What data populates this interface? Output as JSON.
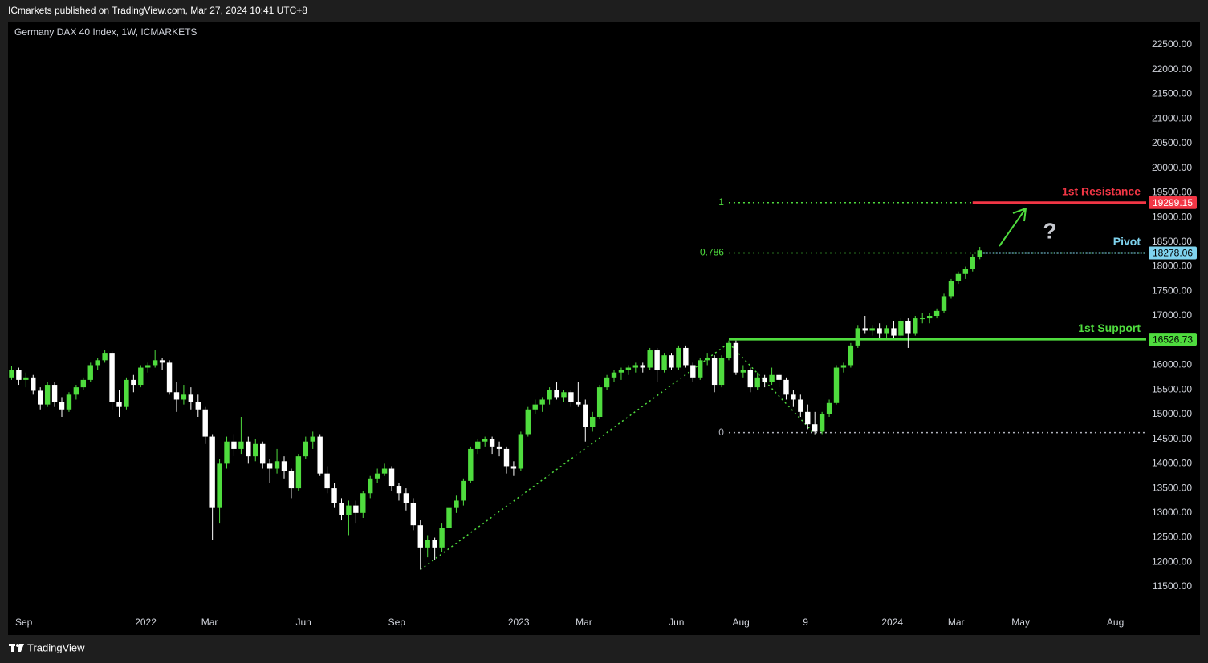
{
  "header": {
    "publisher": "ICmarkets published on TradingView.com, Mar 27, 2024 10:41 UTC+8",
    "footer": "TradingView"
  },
  "chart_data": {
    "type": "candlestick",
    "title": "Germany DAX 40 Index, 1W, ICMARKETS",
    "up_color": "#4fdc3e",
    "down_color": "#ffffff",
    "ylim": [
      10963,
      22956
    ],
    "yticks": [
      {
        "value": 11500,
        "label": "11500.00"
      },
      {
        "value": 12000,
        "label": "12000.00"
      },
      {
        "value": 12500,
        "label": "12500.00"
      },
      {
        "value": 13000,
        "label": "13000.00"
      },
      {
        "value": 13500,
        "label": "13500.00"
      },
      {
        "value": 14000,
        "label": "14000.00"
      },
      {
        "value": 14500,
        "label": "14500.00"
      },
      {
        "value": 15000,
        "label": "15000.00"
      },
      {
        "value": 15500,
        "label": "15500.00"
      },
      {
        "value": 16000,
        "label": "16000.00"
      },
      {
        "value": 16500,
        "label": "16500.00"
      },
      {
        "value": 17000,
        "label": "17000.00"
      },
      {
        "value": 17500,
        "label": "17500.00"
      },
      {
        "value": 18000,
        "label": "18000.00"
      },
      {
        "value": 18500,
        "label": "18500.00"
      },
      {
        "value": 19000,
        "label": "19000.00"
      },
      {
        "value": 19500,
        "label": "19500.00"
      },
      {
        "value": 20000,
        "label": "20000.00"
      },
      {
        "value": 20500,
        "label": "20500.00"
      },
      {
        "value": 21000,
        "label": "21000.00"
      },
      {
        "value": 21500,
        "label": "21500.00"
      },
      {
        "value": 22000,
        "label": "22000.00"
      },
      {
        "value": 22500,
        "label": "22500.00"
      }
    ],
    "xlim": [
      -0.5,
      158.2
    ],
    "xticks": [
      {
        "value": 1.7,
        "label": "Sep"
      },
      {
        "value": 18.7,
        "label": "2022"
      },
      {
        "value": 27.6,
        "label": "Mar"
      },
      {
        "value": 40.7,
        "label": "Jun"
      },
      {
        "value": 53.7,
        "label": "Sep"
      },
      {
        "value": 70.7,
        "label": "2023"
      },
      {
        "value": 79.8,
        "label": "Mar"
      },
      {
        "value": 92.7,
        "label": "Jun"
      },
      {
        "value": 101.7,
        "label": "Aug"
      },
      {
        "value": 110.7,
        "label": "9"
      },
      {
        "value": 122.8,
        "label": "2024"
      },
      {
        "value": 131.7,
        "label": "Mar"
      },
      {
        "value": 140.7,
        "label": "May"
      },
      {
        "value": 153.9,
        "label": "Aug"
      }
    ],
    "ohlc": [
      [
        15750,
        15980,
        15700,
        15900
      ],
      [
        15900,
        15950,
        15600,
        15700
      ],
      [
        15700,
        15850,
        15550,
        15750
      ],
      [
        15750,
        15800,
        15400,
        15480
      ],
      [
        15480,
        15550,
        15100,
        15200
      ],
      [
        15200,
        15650,
        15150,
        15600
      ],
      [
        15600,
        15650,
        15150,
        15250
      ],
      [
        15250,
        15350,
        14950,
        15100
      ],
      [
        15100,
        15450,
        15050,
        15400
      ],
      [
        15400,
        15600,
        15300,
        15550
      ],
      [
        15550,
        15750,
        15500,
        15700
      ],
      [
        15700,
        16050,
        15650,
        16000
      ],
      [
        16000,
        16150,
        15900,
        16100
      ],
      [
        16100,
        16300,
        16050,
        16250
      ],
      [
        16250,
        16280,
        15100,
        15250
      ],
      [
        15250,
        15500,
        14950,
        15150
      ],
      [
        15150,
        15750,
        15100,
        15700
      ],
      [
        15700,
        15800,
        15450,
        15600
      ],
      [
        15600,
        16000,
        15550,
        15950
      ],
      [
        15950,
        16050,
        15850,
        16000
      ],
      [
        16000,
        16300,
        15950,
        16100
      ],
      [
        16100,
        16150,
        15900,
        16050
      ],
      [
        16050,
        16100,
        15400,
        15450
      ],
      [
        15450,
        15650,
        15050,
        15300
      ],
      [
        15300,
        15600,
        15200,
        15400
      ],
      [
        15400,
        15550,
        15100,
        15250
      ],
      [
        15250,
        15400,
        14950,
        15100
      ],
      [
        15100,
        15150,
        14400,
        14550
      ],
      [
        14550,
        14600,
        12450,
        13100
      ],
      [
        13100,
        14100,
        12800,
        14000
      ],
      [
        14000,
        14550,
        13900,
        14450
      ],
      [
        14450,
        14600,
        14150,
        14300
      ],
      [
        14300,
        14950,
        14200,
        14450
      ],
      [
        14450,
        14550,
        14000,
        14150
      ],
      [
        14150,
        14500,
        14050,
        14400
      ],
      [
        14400,
        14450,
        13900,
        14000
      ],
      [
        14000,
        14100,
        13600,
        13900
      ],
      [
        13900,
        14300,
        13800,
        14050
      ],
      [
        14050,
        14150,
        13700,
        13850
      ],
      [
        13850,
        13900,
        13300,
        13500
      ],
      [
        13500,
        14200,
        13450,
        14150
      ],
      [
        14150,
        14550,
        14100,
        14450
      ],
      [
        14450,
        14650,
        14300,
        14550
      ],
      [
        14550,
        14600,
        13750,
        13800
      ],
      [
        13800,
        13950,
        13400,
        13500
      ],
      [
        13500,
        13600,
        13100,
        13200
      ],
      [
        13200,
        13300,
        12850,
        12950
      ],
      [
        12950,
        13250,
        12550,
        13150
      ],
      [
        13150,
        13250,
        12800,
        13000
      ],
      [
        13000,
        13450,
        12900,
        13400
      ],
      [
        13400,
        13750,
        13300,
        13700
      ],
      [
        13700,
        13900,
        13600,
        13800
      ],
      [
        13800,
        14000,
        13750,
        13900
      ],
      [
        13900,
        13950,
        13450,
        13550
      ],
      [
        13550,
        13600,
        13250,
        13400
      ],
      [
        13400,
        13500,
        13050,
        13200
      ],
      [
        13200,
        13300,
        12650,
        12750
      ],
      [
        12750,
        12850,
        11850,
        12300
      ],
      [
        12300,
        12550,
        12100,
        12450
      ],
      [
        12450,
        12500,
        12050,
        12300
      ],
      [
        12300,
        12800,
        12200,
        12700
      ],
      [
        12700,
        13150,
        12600,
        13100
      ],
      [
        13100,
        13350,
        13000,
        13250
      ],
      [
        13250,
        13700,
        13150,
        13650
      ],
      [
        13650,
        14350,
        13600,
        14300
      ],
      [
        14300,
        14500,
        14200,
        14450
      ],
      [
        14450,
        14550,
        14350,
        14500
      ],
      [
        14500,
        14550,
        14200,
        14350
      ],
      [
        14350,
        14450,
        14150,
        14300
      ],
      [
        14300,
        14350,
        13800,
        13950
      ],
      [
        13950,
        14050,
        13750,
        13900
      ],
      [
        13900,
        14650,
        13850,
        14600
      ],
      [
        14600,
        15150,
        14550,
        15100
      ],
      [
        15100,
        15300,
        15000,
        15200
      ],
      [
        15200,
        15350,
        15050,
        15300
      ],
      [
        15300,
        15550,
        15200,
        15500
      ],
      [
        15500,
        15650,
        15300,
        15350
      ],
      [
        15350,
        15500,
        15250,
        15450
      ],
      [
        15450,
        15500,
        15150,
        15250
      ],
      [
        15250,
        15650,
        15150,
        15200
      ],
      [
        15200,
        15300,
        14450,
        14750
      ],
      [
        14750,
        15050,
        14650,
        14950
      ],
      [
        14950,
        15600,
        14900,
        15550
      ],
      [
        15550,
        15800,
        15500,
        15750
      ],
      [
        15750,
        15900,
        15650,
        15850
      ],
      [
        15850,
        15950,
        15700,
        15900
      ],
      [
        15900,
        16000,
        15800,
        15950
      ],
      [
        15950,
        16050,
        15850,
        16000
      ],
      [
        16000,
        16050,
        15850,
        15950
      ],
      [
        15950,
        16350,
        15900,
        16300
      ],
      [
        16300,
        16350,
        15650,
        15900
      ],
      [
        15900,
        16250,
        15850,
        16200
      ],
      [
        16200,
        16250,
        15900,
        15950
      ],
      [
        15950,
        16400,
        15900,
        16350
      ],
      [
        16350,
        16400,
        15950,
        16000
      ],
      [
        16000,
        16050,
        15650,
        15750
      ],
      [
        15750,
        16150,
        15700,
        16100
      ],
      [
        16100,
        16250,
        16000,
        16150
      ],
      [
        16150,
        16200,
        15450,
        15600
      ],
      [
        15600,
        16200,
        15550,
        16150
      ],
      [
        16150,
        16500,
        16100,
        16450
      ],
      [
        16450,
        16500,
        15800,
        15850
      ],
      [
        15850,
        16000,
        15750,
        15900
      ],
      [
        15900,
        15950,
        15450,
        15550
      ],
      [
        15550,
        15850,
        15500,
        15750
      ],
      [
        15750,
        15800,
        15550,
        15650
      ],
      [
        15650,
        15950,
        15600,
        15800
      ],
      [
        15800,
        15850,
        15550,
        15700
      ],
      [
        15700,
        15750,
        15300,
        15400
      ],
      [
        15400,
        15500,
        15150,
        15300
      ],
      [
        15300,
        15400,
        14950,
        15050
      ],
      [
        15050,
        15200,
        14700,
        14800
      ],
      [
        14800,
        15050,
        14600,
        14650
      ],
      [
        14650,
        15050,
        14600,
        15000
      ],
      [
        15000,
        15300,
        14950,
        15230
      ],
      [
        15230,
        16000,
        15200,
        15950
      ],
      [
        15950,
        16050,
        15850,
        16000
      ],
      [
        16000,
        16450,
        15950,
        16400
      ],
      [
        16400,
        16800,
        16350,
        16750
      ],
      [
        16750,
        17000,
        16650,
        16700
      ],
      [
        16700,
        16800,
        16600,
        16750
      ],
      [
        16750,
        16850,
        16550,
        16650
      ],
      [
        16650,
        16800,
        16550,
        16750
      ],
      [
        16750,
        16900,
        16550,
        16600
      ],
      [
        16600,
        16950,
        16550,
        16900
      ],
      [
        16900,
        16950,
        16350,
        16650
      ],
      [
        16650,
        17000,
        16600,
        16950
      ],
      [
        16950,
        17050,
        16850,
        16950
      ],
      [
        16950,
        17050,
        16850,
        17000
      ],
      [
        17000,
        17150,
        16950,
        17100
      ],
      [
        17100,
        17450,
        17050,
        17400
      ],
      [
        17400,
        17750,
        17350,
        17700
      ],
      [
        17700,
        17900,
        17650,
        17850
      ],
      [
        17850,
        18000,
        17750,
        17950
      ],
      [
        17950,
        18250,
        17900,
        18200
      ],
      [
        18200,
        18400,
        18150,
        18330
      ]
    ],
    "trend_lines": [
      {
        "x": [
          57,
          100
        ],
        "y": [
          11850,
          16450
        ]
      },
      {
        "x": [
          100,
          112
        ],
        "y": [
          16450,
          14600
        ]
      }
    ],
    "fib": {
      "from": 100,
      "ratios": [
        1,
        0.786,
        0
      ],
      "prices": [
        19299,
        18278,
        14630
      ],
      "colors": [
        "#4fdc3e",
        "#4fdc3e",
        "#b2b5be"
      ]
    },
    "levels": [
      {
        "name": "1st Resistance",
        "value": 19299.15,
        "from": 134,
        "color": "#f23645",
        "text_color": "#ffffff",
        "style": "solid"
      },
      {
        "name": "Pivot",
        "value": 18278.06,
        "from": 135,
        "color": "#7fd3ee",
        "text_color": "#000000",
        "style": "dotted"
      },
      {
        "name": "1st Support",
        "value": 16526.73,
        "from": 100,
        "color": "#4fdc3e",
        "text_color": "#000000",
        "style": "solid"
      }
    ],
    "annotation": "?"
  }
}
